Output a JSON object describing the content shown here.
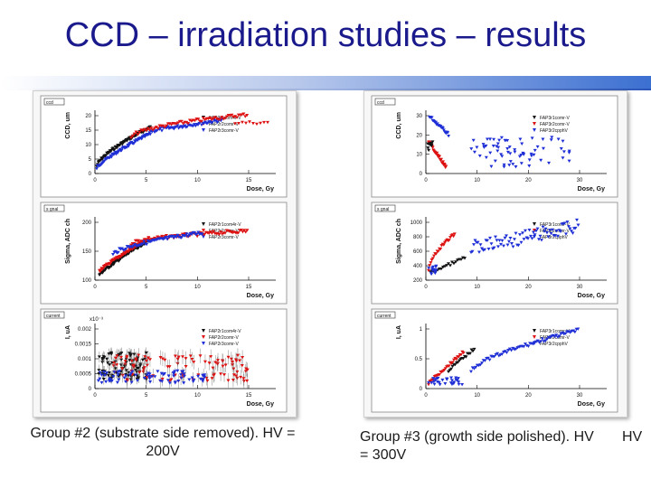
{
  "header": {
    "title": "CCD – irradiation studies – results"
  },
  "colors": {
    "title": "#1a1a8c",
    "series_black": "#111111",
    "series_red": "#dd1111",
    "series_blue": "#1f2fd6"
  },
  "panel_left": {
    "caption": "Group #2 (substrate side removed). HV = 200V",
    "charts": [
      {
        "tag": "ccd",
        "ylabel": "CCD, um",
        "xlabel": "Dose, Gy",
        "xticks": [
          "0",
          "5",
          "10",
          "15"
        ],
        "yticks": [
          "0",
          "5",
          "10",
          "15",
          "20"
        ],
        "legend": [
          "FAP2r1com4r-V",
          "FAP2r2comr-V",
          "FAP2r3comr-V"
        ]
      },
      {
        "tag": "s gnal",
        "ylabel": "Sigma, ADC ch",
        "xlabel": "Dose, Gy",
        "xticks": [
          "0",
          "5",
          "10",
          "15"
        ],
        "yticks": [
          "100",
          "150",
          "200"
        ],
        "legend": [
          "FAP2r1com4r-V",
          "FAP2r2comr-V",
          "FAP2r3comr-V"
        ]
      },
      {
        "tag": "current",
        "ylabel": "I, uA",
        "xlabel": "Dose, Gy",
        "multiplier": "x10⁻³",
        "xticks": [
          "0",
          "5",
          "10",
          "15"
        ],
        "yticks": [
          "0",
          "0.0005",
          "0.001",
          "0.0015",
          "0.002"
        ],
        "legend": [
          "FAP2r1com4r-V",
          "FAP2r2comr-V",
          "FAP2r3comr-V"
        ]
      }
    ]
  },
  "panel_right": {
    "caption": "Group #3 (growth side polished). HV = 300V",
    "charts": [
      {
        "tag": "ccd",
        "ylabel": "CCD, um",
        "xlabel": "Dose, Gy",
        "xticks": [
          "0",
          "10",
          "20",
          "30"
        ],
        "yticks": [
          "0",
          "10",
          "20",
          "30"
        ],
        "legend": [
          "FAP3r1comr-V",
          "FAP3r2comr-V",
          "FAP3r2cpphV"
        ]
      },
      {
        "tag": "s gnal",
        "ylabel": "Sigma, ADC ch",
        "xlabel": "Dose, Gy",
        "xticks": [
          "0",
          "10",
          "20",
          "30"
        ],
        "yticks": [
          "200",
          "400",
          "600",
          "800",
          "1000"
        ],
        "legend": [
          "FAP3r1comr-V",
          "FAP3r2comr-V",
          "FAP3r2cpphV"
        ]
      },
      {
        "tag": "current",
        "ylabel": "I, uA",
        "xlabel": "Dose, Gy",
        "xticks": [
          "0",
          "10",
          "20",
          "30"
        ],
        "yticks": [
          "0",
          "0.5",
          "1"
        ],
        "legend": [
          "FAP3r1comr-V",
          "FAP3r2comr-V",
          "FAP3r2cpphV"
        ]
      }
    ]
  },
  "footer": {
    "hv": "HV"
  }
}
